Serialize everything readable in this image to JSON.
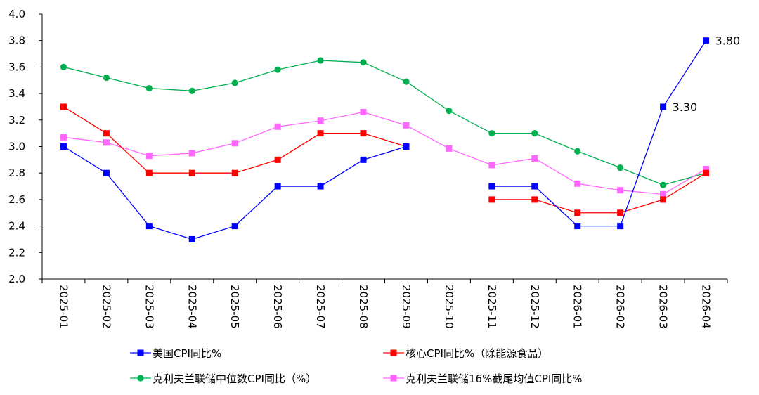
{
  "chart_data": {
    "type": "line",
    "categories": [
      "2025-01",
      "2025-02",
      "2025-03",
      "2025-04",
      "2025-05",
      "2025-06",
      "2025-07",
      "2025-08",
      "2025-09",
      "2025-10",
      "2025-11",
      "2025-12",
      "2026-01",
      "2026-02",
      "2026-03",
      "2026-04"
    ],
    "ylim": [
      2.0,
      4.0
    ],
    "yticks": [
      "2.0",
      "2.2",
      "2.4",
      "2.6",
      "2.8",
      "3.0",
      "3.2",
      "3.4",
      "3.6",
      "3.8",
      "4.0"
    ],
    "grid": false,
    "legend_placement": "bottom",
    "series": [
      {
        "name": "美国CPI同比%",
        "color": "#0000ff",
        "marker": "square",
        "values": [
          3.0,
          2.8,
          2.4,
          2.3,
          2.4,
          2.7,
          2.7,
          2.9,
          3.0,
          null,
          2.7,
          2.7,
          2.4,
          2.4,
          3.3,
          3.8
        ]
      },
      {
        "name": "核心CPI同比%（除能源食品）",
        "color": "#ff0000",
        "marker": "square",
        "values": [
          3.3,
          3.1,
          2.8,
          2.8,
          2.8,
          2.9,
          3.1,
          3.1,
          3.0,
          null,
          2.6,
          2.6,
          2.5,
          2.5,
          2.6,
          2.8
        ]
      },
      {
        "name": "克利夫兰联储中位数CPI同比（%）",
        "color": "#00b050",
        "marker": "circle",
        "values": [
          3.6,
          3.52,
          3.44,
          3.42,
          3.48,
          3.58,
          3.65,
          3.635,
          3.49,
          3.27,
          3.1,
          3.1,
          2.965,
          2.84,
          2.71,
          2.8
        ]
      },
      {
        "name": "克利夫兰联储16%截尾均值CPI同比%",
        "color": "#ff66ff",
        "marker": "square",
        "values": [
          3.07,
          3.03,
          2.93,
          2.95,
          3.025,
          3.15,
          3.195,
          3.26,
          3.16,
          2.985,
          2.86,
          2.91,
          2.72,
          2.67,
          2.64,
          2.83
        ]
      }
    ],
    "annotations": [
      {
        "series": 0,
        "index": 14,
        "text": "3.30"
      },
      {
        "series": 0,
        "index": 15,
        "text": "3.80"
      }
    ]
  }
}
